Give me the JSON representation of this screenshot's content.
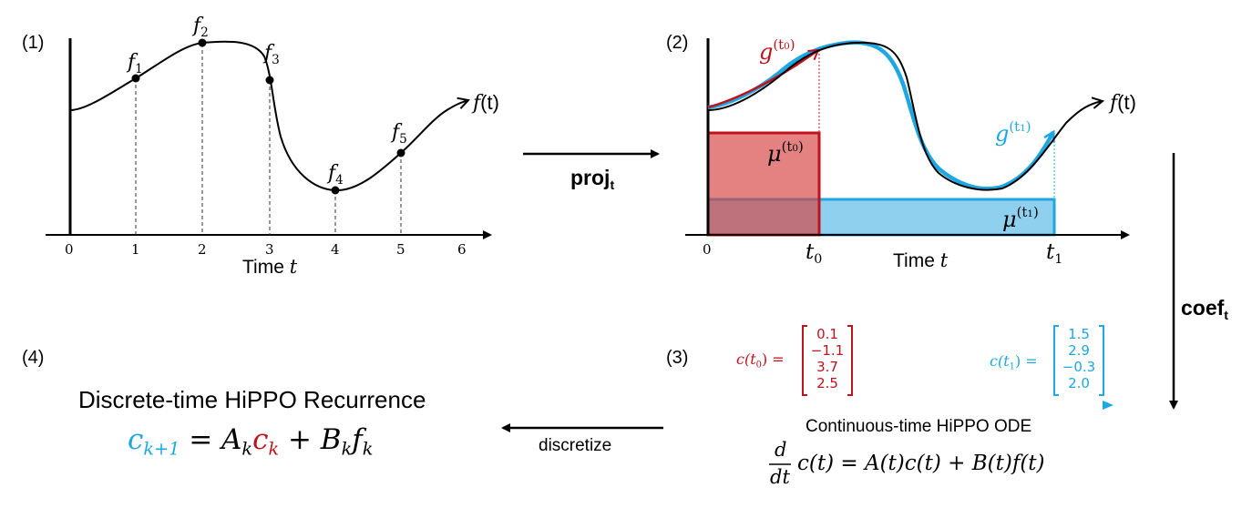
{
  "colors": {
    "red": "#c0121c",
    "blue": "#1ea7e1",
    "black": "#000000"
  },
  "panel1": {
    "label": "(1)",
    "ticks": [
      "0",
      "1",
      "2",
      "3",
      "4",
      "5",
      "6"
    ],
    "axis_title": "Time",
    "axis_var": "t",
    "samples": [
      "1",
      "2",
      "3",
      "4",
      "5"
    ],
    "sample_letter": "f",
    "curve_label": "f",
    "curve_arg": "(t)"
  },
  "arrow_proj": {
    "label": "proj",
    "sub": "t"
  },
  "panel2": {
    "label": "(2)",
    "tick0": "0",
    "t0": "t",
    "t0_sub": "0",
    "t1": "t",
    "t1_sub": "1",
    "axis_title": "Time",
    "axis_var": "t",
    "curve_label": "f",
    "curve_arg": "(t)",
    "g0": {
      "base": "g",
      "sup": "(t",
      "sub": "0",
      "close": ")"
    },
    "g1": {
      "base": "g",
      "sup": "(t",
      "sub": "1",
      "close": ")"
    },
    "mu0": {
      "base": "μ",
      "sup": "(t",
      "sub": "0",
      "close": ")"
    },
    "mu1": {
      "base": "μ",
      "sup": "(t",
      "sub": "1",
      "close": ")"
    }
  },
  "arrow_coef": {
    "label": "coef",
    "sub": "t"
  },
  "panel3": {
    "label": "(3)",
    "c0_label": "c(t",
    "c0_sub": "0",
    "c0_close": ") =",
    "c0_values": [
      "0.1",
      "−1.1",
      "3.7",
      "2.5"
    ],
    "c1_label": "c(t",
    "c1_sub": "1",
    "c1_close": ") =",
    "c1_values": [
      "1.5",
      "2.9",
      "−0.3",
      "2.0"
    ],
    "ode_title": "Continuous-time HiPPO ODE",
    "ode_d": "d",
    "ode_dt": "dt",
    "ode_rhs": "c(t) = A(t)c(t) + B(t)f(t)"
  },
  "arrow_discretize": {
    "label": "discretize"
  },
  "panel4": {
    "label": "(4)",
    "title": "Discrete-time HiPPO Recurrence",
    "lhs": "c",
    "lhs_sub": "k+1",
    "eq": "=",
    "a": "A",
    "a_sub": "k",
    "c": "c",
    "c_sub": "k",
    "plus": "+",
    "b": "B",
    "b_sub": "k",
    "f": "f",
    "f_sub": "k"
  }
}
